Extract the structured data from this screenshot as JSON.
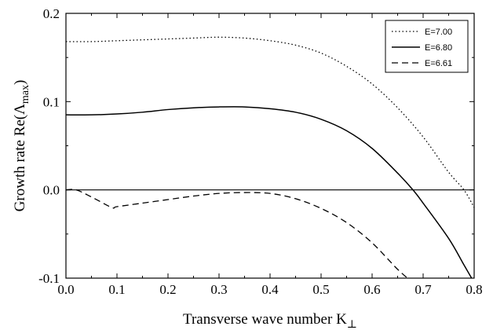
{
  "chart_data": {
    "type": "line",
    "xlabel": "Transverse wave number K",
    "xlabel_sub": "⊥",
    "ylabel": "Growth rate Re(Λ",
    "ylabel_sub": "max",
    "ylabel_close": ")",
    "xlim": [
      0.0,
      0.8
    ],
    "ylim": [
      -0.1,
      0.2
    ],
    "xticks": [
      "0.0",
      "0.1",
      "0.2",
      "0.3",
      "0.4",
      "0.5",
      "0.6",
      "0.7",
      "0.8"
    ],
    "yticks": [
      "-0.1",
      "0.0",
      "0.1",
      "0.2"
    ],
    "grid": false,
    "legend_position": "top-right",
    "reference_line_y": 0.0,
    "series": [
      {
        "name": "E=7.00",
        "style": "dotted",
        "x": [
          0.0,
          0.05,
          0.1,
          0.15,
          0.2,
          0.25,
          0.3,
          0.35,
          0.4,
          0.45,
          0.5,
          0.55,
          0.6,
          0.65,
          0.7,
          0.75,
          0.78,
          0.8
        ],
        "y": [
          0.168,
          0.168,
          0.169,
          0.17,
          0.171,
          0.172,
          0.173,
          0.172,
          0.169,
          0.164,
          0.155,
          0.14,
          0.12,
          0.093,
          0.06,
          0.02,
          0.0,
          -0.02
        ]
      },
      {
        "name": "E=6.80",
        "style": "solid",
        "x": [
          0.0,
          0.05,
          0.1,
          0.15,
          0.2,
          0.25,
          0.3,
          0.35,
          0.4,
          0.45,
          0.5,
          0.55,
          0.6,
          0.65,
          0.68,
          0.7,
          0.75,
          0.78,
          0.8
        ],
        "y": [
          0.085,
          0.085,
          0.086,
          0.088,
          0.091,
          0.093,
          0.094,
          0.094,
          0.092,
          0.088,
          0.08,
          0.067,
          0.047,
          0.019,
          0.0,
          -0.015,
          -0.055,
          -0.085,
          -0.105
        ]
      },
      {
        "name": "E=6.61",
        "style": "dashed",
        "x": [
          0.0,
          0.02,
          0.05,
          0.09,
          0.1,
          0.15,
          0.2,
          0.25,
          0.3,
          0.35,
          0.4,
          0.45,
          0.5,
          0.55,
          0.6,
          0.65,
          0.68
        ],
        "y": [
          0.0,
          0.0,
          -0.008,
          -0.02,
          -0.019,
          -0.015,
          -0.011,
          -0.007,
          -0.004,
          -0.003,
          -0.004,
          -0.01,
          -0.021,
          -0.037,
          -0.06,
          -0.09,
          -0.105
        ]
      }
    ]
  }
}
